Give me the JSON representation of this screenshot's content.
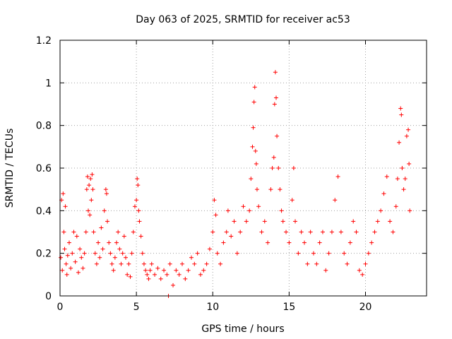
{
  "chart_data": {
    "type": "scatter",
    "title": "Day 063 of 2025, SRMTID for receiver ac53",
    "xlabel": "GPS time / hours",
    "ylabel": "SRMTID / TECUs",
    "xlim": [
      0,
      24
    ],
    "ylim": [
      0,
      1.2
    ],
    "xticks": [
      0,
      5,
      10,
      15,
      20
    ],
    "yticks": [
      0,
      0.2,
      0.4,
      0.6,
      0.8,
      1.0,
      1.2
    ],
    "xtick_labels": [
      "0",
      "5",
      "10",
      "15",
      "20"
    ],
    "ytick_labels": [
      "0",
      "0.2",
      "0.4",
      "0.6",
      "0.8",
      "1",
      "1.2"
    ],
    "grid": true,
    "marker": "+",
    "color": "#ff0000",
    "series": [
      {
        "name": "SRMTID",
        "points": [
          [
            0.05,
            0.18
          ],
          [
            0.1,
            0.45
          ],
          [
            0.15,
            0.12
          ],
          [
            0.2,
            0.48
          ],
          [
            0.25,
            0.3
          ],
          [
            0.3,
            0.22
          ],
          [
            0.35,
            0.42
          ],
          [
            0.4,
            0.15
          ],
          [
            0.45,
            0.1
          ],
          [
            0.5,
            0.19
          ],
          [
            0.6,
            0.25
          ],
          [
            0.7,
            0.13
          ],
          [
            0.8,
            0.2
          ],
          [
            0.9,
            0.3
          ],
          [
            1.0,
            0.16
          ],
          [
            1.1,
            0.28
          ],
          [
            1.2,
            0.11
          ],
          [
            1.3,
            0.22
          ],
          [
            1.4,
            0.18
          ],
          [
            1.5,
            0.13
          ],
          [
            1.6,
            0.2
          ],
          [
            1.7,
            0.3
          ],
          [
            1.75,
            0.5
          ],
          [
            1.8,
            0.56
          ],
          [
            1.85,
            0.4
          ],
          [
            1.9,
            0.52
          ],
          [
            1.95,
            0.38
          ],
          [
            2.0,
            0.55
          ],
          [
            2.05,
            0.45
          ],
          [
            2.1,
            0.57
          ],
          [
            2.15,
            0.5
          ],
          [
            2.2,
            0.3
          ],
          [
            2.3,
            0.2
          ],
          [
            2.4,
            0.15
          ],
          [
            2.5,
            0.25
          ],
          [
            2.6,
            0.18
          ],
          [
            2.7,
            0.32
          ],
          [
            2.8,
            0.22
          ],
          [
            2.9,
            0.4
          ],
          [
            3.0,
            0.5
          ],
          [
            3.05,
            0.48
          ],
          [
            3.1,
            0.35
          ],
          [
            3.2,
            0.25
          ],
          [
            3.3,
            0.2
          ],
          [
            3.4,
            0.15
          ],
          [
            3.5,
            0.12
          ],
          [
            3.6,
            0.18
          ],
          [
            3.7,
            0.25
          ],
          [
            3.8,
            0.3
          ],
          [
            3.9,
            0.22
          ],
          [
            4.0,
            0.15
          ],
          [
            4.1,
            0.2
          ],
          [
            4.2,
            0.28
          ],
          [
            4.3,
            0.18
          ],
          [
            4.4,
            0.1
          ],
          [
            4.5,
            0.15
          ],
          [
            4.6,
            0.09
          ],
          [
            4.7,
            0.2
          ],
          [
            4.8,
            0.3
          ],
          [
            4.9,
            0.42
          ],
          [
            5.0,
            0.45
          ],
          [
            5.05,
            0.55
          ],
          [
            5.1,
            0.52
          ],
          [
            5.15,
            0.4
          ],
          [
            5.2,
            0.35
          ],
          [
            5.3,
            0.28
          ],
          [
            5.4,
            0.2
          ],
          [
            5.5,
            0.15
          ],
          [
            5.6,
            0.12
          ],
          [
            5.7,
            0.1
          ],
          [
            5.8,
            0.08
          ],
          [
            5.9,
            0.12
          ],
          [
            6.0,
            0.15
          ],
          [
            6.2,
            0.1
          ],
          [
            6.4,
            0.13
          ],
          [
            6.6,
            0.08
          ],
          [
            6.8,
            0.12
          ],
          [
            7.0,
            0.1
          ],
          [
            7.1,
            0.0
          ],
          [
            7.2,
            0.15
          ],
          [
            7.4,
            0.05
          ],
          [
            7.6,
            0.12
          ],
          [
            7.8,
            0.1
          ],
          [
            8.0,
            0.15
          ],
          [
            8.2,
            0.08
          ],
          [
            8.4,
            0.12
          ],
          [
            8.6,
            0.18
          ],
          [
            8.8,
            0.15
          ],
          [
            9.0,
            0.2
          ],
          [
            9.2,
            0.1
          ],
          [
            9.4,
            0.12
          ],
          [
            9.6,
            0.15
          ],
          [
            9.8,
            0.22
          ],
          [
            10.0,
            0.3
          ],
          [
            10.1,
            0.45
          ],
          [
            10.2,
            0.38
          ],
          [
            10.3,
            0.2
          ],
          [
            10.5,
            0.15
          ],
          [
            10.7,
            0.25
          ],
          [
            10.9,
            0.3
          ],
          [
            11.0,
            0.4
          ],
          [
            11.2,
            0.28
          ],
          [
            11.4,
            0.35
          ],
          [
            11.6,
            0.2
          ],
          [
            11.8,
            0.3
          ],
          [
            12.0,
            0.42
          ],
          [
            12.2,
            0.35
          ],
          [
            12.4,
            0.4
          ],
          [
            12.5,
            0.55
          ],
          [
            12.6,
            0.7
          ],
          [
            12.65,
            0.79
          ],
          [
            12.7,
            0.91
          ],
          [
            12.75,
            0.98
          ],
          [
            12.8,
            0.68
          ],
          [
            12.85,
            0.62
          ],
          [
            12.9,
            0.5
          ],
          [
            13.0,
            0.42
          ],
          [
            13.2,
            0.3
          ],
          [
            13.4,
            0.35
          ],
          [
            13.6,
            0.25
          ],
          [
            13.8,
            0.5
          ],
          [
            13.9,
            0.6
          ],
          [
            14.0,
            0.65
          ],
          [
            14.05,
            0.9
          ],
          [
            14.1,
            1.05
          ],
          [
            14.15,
            0.93
          ],
          [
            14.2,
            0.75
          ],
          [
            14.3,
            0.6
          ],
          [
            14.4,
            0.5
          ],
          [
            14.5,
            0.4
          ],
          [
            14.6,
            0.35
          ],
          [
            14.8,
            0.3
          ],
          [
            15.0,
            0.25
          ],
          [
            15.2,
            0.45
          ],
          [
            15.3,
            0.6
          ],
          [
            15.4,
            0.35
          ],
          [
            15.6,
            0.2
          ],
          [
            15.8,
            0.3
          ],
          [
            16.0,
            0.25
          ],
          [
            16.2,
            0.15
          ],
          [
            16.4,
            0.3
          ],
          [
            16.6,
            0.2
          ],
          [
            16.8,
            0.15
          ],
          [
            17.0,
            0.25
          ],
          [
            17.2,
            0.3
          ],
          [
            17.4,
            0.12
          ],
          [
            17.6,
            0.2
          ],
          [
            17.8,
            0.3
          ],
          [
            18.0,
            0.45
          ],
          [
            18.2,
            0.56
          ],
          [
            18.4,
            0.3
          ],
          [
            18.6,
            0.2
          ],
          [
            18.8,
            0.15
          ],
          [
            19.0,
            0.25
          ],
          [
            19.2,
            0.35
          ],
          [
            19.4,
            0.3
          ],
          [
            19.6,
            0.12
          ],
          [
            19.8,
            0.1
          ],
          [
            20.0,
            0.15
          ],
          [
            20.2,
            0.2
          ],
          [
            20.4,
            0.25
          ],
          [
            20.6,
            0.3
          ],
          [
            20.8,
            0.35
          ],
          [
            21.0,
            0.4
          ],
          [
            21.2,
            0.48
          ],
          [
            21.4,
            0.56
          ],
          [
            21.6,
            0.35
          ],
          [
            21.8,
            0.3
          ],
          [
            22.0,
            0.42
          ],
          [
            22.1,
            0.55
          ],
          [
            22.2,
            0.72
          ],
          [
            22.3,
            0.88
          ],
          [
            22.35,
            0.85
          ],
          [
            22.4,
            0.6
          ],
          [
            22.5,
            0.5
          ],
          [
            22.6,
            0.55
          ],
          [
            22.7,
            0.75
          ],
          [
            22.8,
            0.78
          ],
          [
            22.85,
            0.62
          ],
          [
            22.9,
            0.4
          ]
        ]
      }
    ]
  }
}
